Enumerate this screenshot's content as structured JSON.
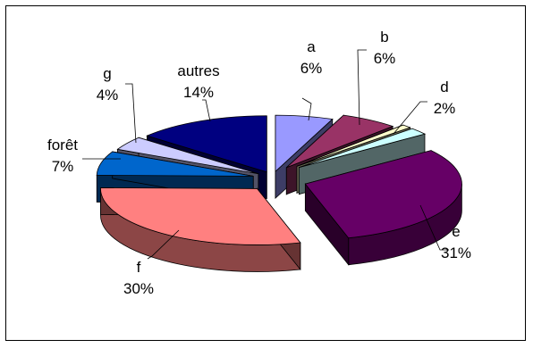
{
  "chart_data": {
    "type": "pie",
    "style": "3d-exploded",
    "title": "",
    "legend": "none",
    "slices": [
      {
        "label": "a",
        "value": 6,
        "display": "6%",
        "color": "#9999ff"
      },
      {
        "label": "b",
        "value": 6,
        "display": "6%",
        "color": "#993366"
      },
      {
        "label": "",
        "value": 1,
        "display": "",
        "color": "#ffffcc"
      },
      {
        "label": "d",
        "value": 2,
        "display": "2%",
        "color": "#ccffff"
      },
      {
        "label": "e",
        "value": 31,
        "display": "31%",
        "color": "#660066"
      },
      {
        "label": "f",
        "value": 30,
        "display": "30%",
        "color": "#ff8080"
      },
      {
        "label": "forêt",
        "value": 7,
        "display": "7%",
        "color": "#0066cc"
      },
      {
        "label": "g",
        "value": 4,
        "display": "4%",
        "color": "#ccccff"
      },
      {
        "label": "autres",
        "value": 14,
        "display": "14%",
        "color": "#000080"
      }
    ]
  }
}
